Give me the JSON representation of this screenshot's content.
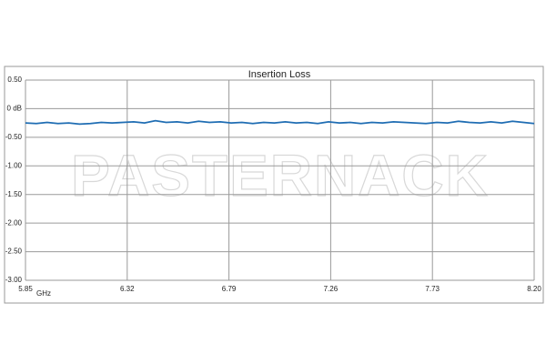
{
  "chart_data": {
    "type": "line",
    "title": "Insertion Loss",
    "x_label": "GHz",
    "watermark": "PASTERNACK",
    "x": [
      5.85,
      5.9,
      5.95,
      6.0,
      6.05,
      6.1,
      6.15,
      6.2,
      6.25,
      6.3,
      6.35,
      6.4,
      6.45,
      6.5,
      6.55,
      6.6,
      6.65,
      6.7,
      6.75,
      6.8,
      6.85,
      6.9,
      6.95,
      7.0,
      7.05,
      7.1,
      7.15,
      7.2,
      7.25,
      7.3,
      7.35,
      7.4,
      7.45,
      7.5,
      7.55,
      7.6,
      7.65,
      7.7,
      7.75,
      7.8,
      7.85,
      7.9,
      7.95,
      8.0,
      8.05,
      8.1,
      8.15,
      8.2
    ],
    "series": [
      {
        "color": "#1f6db3",
        "values": [
          -0.25,
          -0.26,
          -0.24,
          -0.26,
          -0.25,
          -0.27,
          -0.26,
          -0.24,
          -0.25,
          -0.24,
          -0.23,
          -0.25,
          -0.21,
          -0.24,
          -0.23,
          -0.25,
          -0.22,
          -0.24,
          -0.23,
          -0.25,
          -0.24,
          -0.26,
          -0.24,
          -0.25,
          -0.23,
          -0.25,
          -0.24,
          -0.26,
          -0.23,
          -0.25,
          -0.24,
          -0.26,
          -0.24,
          -0.25,
          -0.23,
          -0.24,
          -0.25,
          -0.26,
          -0.24,
          -0.25,
          -0.22,
          -0.24,
          -0.25,
          -0.23,
          -0.25,
          -0.22,
          -0.24,
          -0.26
        ]
      }
    ],
    "xlim": [
      5.85,
      8.2
    ],
    "xticks": [
      5.85,
      6.32,
      6.79,
      7.26,
      7.73,
      {
        "value": 8.2,
        "label": "8.20"
      }
    ],
    "ylim": [
      -3,
      0.5
    ],
    "yticks": [
      {
        "value": 0.5,
        "label": "0.50"
      },
      {
        "value": 0,
        "label": "0 dB"
      },
      {
        "value": -0.5,
        "label": "-0.50"
      },
      {
        "value": -1,
        "label": "-1.00"
      },
      {
        "value": -1.5,
        "label": "-1.50"
      },
      {
        "value": -2,
        "label": "-2.00"
      },
      {
        "value": -2.5,
        "label": "-2.50"
      },
      {
        "value": -3,
        "label": "-3.00"
      }
    ],
    "grid": true
  }
}
